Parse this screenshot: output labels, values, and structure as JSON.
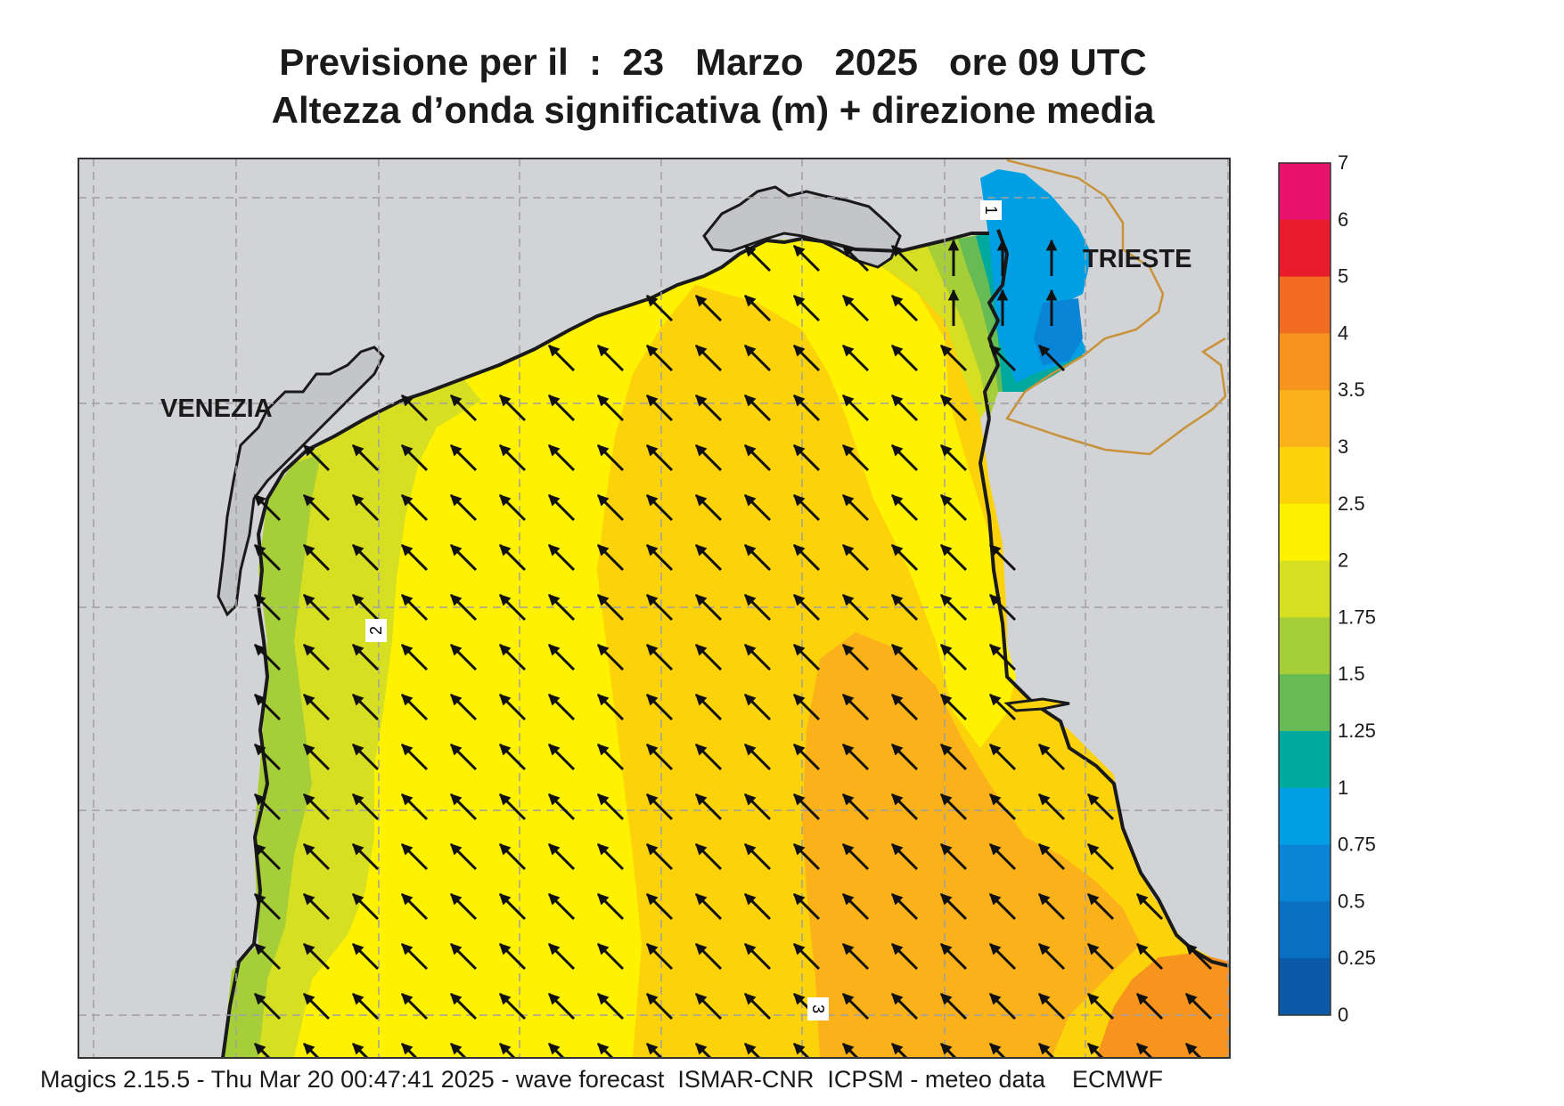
{
  "header": {
    "title_line1": "Previsione per il  :  23   Marzo   2025   ore 09 UTC",
    "title_line2": "Altezza d’onda significativa (m) + direzione media"
  },
  "map": {
    "cities": [
      {
        "name": "VENEZIA"
      },
      {
        "name": "TRIESTE"
      }
    ],
    "contour_labels": [
      "1",
      "2",
      "3"
    ],
    "wave_direction": "north-west",
    "colors": {
      "land": "#d2d3d6",
      "coastline": "#1a1a1a",
      "border": "#c8923a",
      "grid": "#a0a0a0"
    }
  },
  "legend": {
    "unit": "m",
    "ticks": [
      "7",
      "6",
      "5",
      "4",
      "3.5",
      "3",
      "2.5",
      "2",
      "1.75",
      "1.5",
      "1.25",
      "1",
      "0.75",
      "0.5",
      "0.25",
      "0"
    ],
    "colors": [
      "#e8136c",
      "#e81c2b",
      "#f26d22",
      "#f7941d",
      "#fbb21a",
      "#fcd20a",
      "#fff200",
      "#d7df23",
      "#a6ce39",
      "#66bb55",
      "#00a99d",
      "#009fe3",
      "#0a84d6",
      "#0a6fc0",
      "#0b5aa8"
    ]
  },
  "footer": {
    "text": "Magics 2.15.5 - Thu Mar 20 00:47:41 2025 - wave forecast  ISMAR-CNR  ICPSM - meteo data    ECMWF"
  }
}
